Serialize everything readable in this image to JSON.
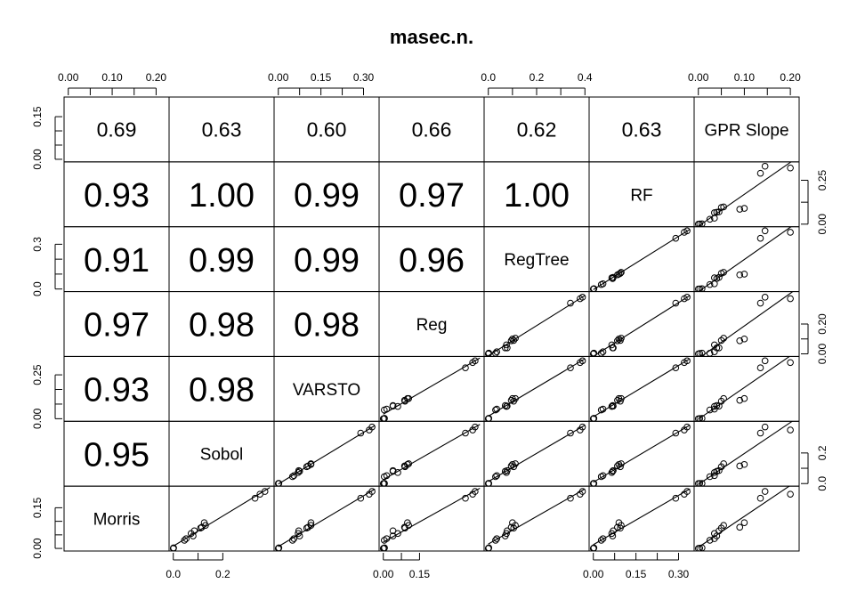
{
  "chart_data": {
    "type": "scatter",
    "plot_kind": "scatterplot-matrix",
    "title": "masec.n.",
    "variables": [
      "Morris",
      "Sobol",
      "VARSTO",
      "Reg",
      "RegTree",
      "RF",
      "GPR Slope"
    ],
    "correlations": [
      {
        "row": "GPR Slope",
        "col": "Morris",
        "value": "0.69"
      },
      {
        "row": "GPR Slope",
        "col": "Sobol",
        "value": "0.63"
      },
      {
        "row": "GPR Slope",
        "col": "VARSTO",
        "value": "0.60"
      },
      {
        "row": "GPR Slope",
        "col": "Reg",
        "value": "0.66"
      },
      {
        "row": "GPR Slope",
        "col": "RegTree",
        "value": "0.62"
      },
      {
        "row": "GPR Slope",
        "col": "RF",
        "value": "0.63"
      },
      {
        "row": "RF",
        "col": "Morris",
        "value": "0.93"
      },
      {
        "row": "RF",
        "col": "Sobol",
        "value": "1.00"
      },
      {
        "row": "RF",
        "col": "VARSTO",
        "value": "0.99"
      },
      {
        "row": "RF",
        "col": "Reg",
        "value": "0.97"
      },
      {
        "row": "RF",
        "col": "RegTree",
        "value": "1.00"
      },
      {
        "row": "RegTree",
        "col": "Morris",
        "value": "0.91"
      },
      {
        "row": "RegTree",
        "col": "Sobol",
        "value": "0.99"
      },
      {
        "row": "RegTree",
        "col": "VARSTO",
        "value": "0.99"
      },
      {
        "row": "RegTree",
        "col": "Reg",
        "value": "0.96"
      },
      {
        "row": "Reg",
        "col": "Morris",
        "value": "0.97"
      },
      {
        "row": "Reg",
        "col": "Sobol",
        "value": "0.98"
      },
      {
        "row": "Reg",
        "col": "VARSTO",
        "value": "0.98"
      },
      {
        "row": "VARSTO",
        "col": "Morris",
        "value": "0.93"
      },
      {
        "row": "VARSTO",
        "col": "Sobol",
        "value": "0.98"
      },
      {
        "row": "Sobol",
        "col": "Morris",
        "value": "0.95"
      }
    ],
    "axis_ticks": {
      "top": [
        {
          "col": 0,
          "labels": [
            "0.00",
            "0.10",
            "0.20"
          ]
        },
        {
          "col": 2,
          "labels": [
            "0.00",
            "0.15",
            "0.30"
          ]
        },
        {
          "col": 4,
          "labels": [
            "0.0",
            "0.2",
            "0.4"
          ]
        },
        {
          "col": 6,
          "labels": [
            "0.00",
            "0.10",
            "0.20"
          ]
        }
      ],
      "bottom": [
        {
          "col": 1,
          "labels": [
            "0.0",
            "0.2"
          ]
        },
        {
          "col": 3,
          "labels": [
            "0.00",
            "0.15"
          ]
        },
        {
          "col": 5,
          "labels": [
            "0.00",
            "0.15",
            "0.30"
          ]
        }
      ],
      "left": [
        {
          "row": 0,
          "labels": [
            "0.00",
            "0.15"
          ]
        },
        {
          "row": 2,
          "labels": [
            "0.0",
            "0.3"
          ]
        },
        {
          "row": 4,
          "labels": [
            "0.00",
            "0.25"
          ]
        },
        {
          "row": 6,
          "labels": [
            "0.00",
            "0.15"
          ]
        }
      ],
      "right": [
        {
          "row": 1,
          "labels": [
            "0.00",
            "0.25"
          ]
        },
        {
          "row": 3,
          "labels": [
            "0.00",
            "0.20"
          ]
        },
        {
          "row": 5,
          "labels": [
            "0.0",
            "0.2"
          ]
        }
      ]
    },
    "axis_ranges": {
      "Morris": [
        0,
        0.22
      ],
      "Sobol": [
        0,
        0.39
      ],
      "VARSTO": [
        0,
        0.34
      ],
      "Reg": [
        0,
        0.4
      ],
      "RegTree": [
        0,
        0.4
      ],
      "RF": [
        0,
        0.34
      ],
      "GPR Slope": [
        0,
        0.21
      ]
    },
    "observations": [
      {
        "Morris": 0.0,
        "Sobol": 0.0,
        "VARSTO": 0.0,
        "Reg": 0.0,
        "RegTree": 0.0,
        "RF": 0.0,
        "GPR Slope": 0.0
      },
      {
        "Morris": 0.001,
        "Sobol": 0.001,
        "VARSTO": 0.001,
        "Reg": 0.003,
        "RegTree": 0.001,
        "RF": 0.001,
        "GPR Slope": 0.003
      },
      {
        "Morris": 0.002,
        "Sobol": 0.001,
        "VARSTO": 0.002,
        "Reg": 0.005,
        "RegTree": 0.002,
        "RF": 0.002,
        "GPR Slope": 0.008
      },
      {
        "Morris": 0.03,
        "Sobol": 0.045,
        "VARSTO": 0.05,
        "Reg": 0.004,
        "RegTree": 0.03,
        "RF": 0.028,
        "GPR Slope": 0.025
      },
      {
        "Morris": 0.036,
        "Sobol": 0.052,
        "VARSTO": 0.055,
        "Reg": 0.014,
        "RegTree": 0.035,
        "RF": 0.034,
        "GPR Slope": 0.035
      },
      {
        "Morris": 0.046,
        "Sobol": 0.08,
        "VARSTO": 0.075,
        "Reg": 0.04,
        "RegTree": 0.07,
        "RF": 0.068,
        "GPR Slope": 0.04
      },
      {
        "Morris": 0.055,
        "Sobol": 0.072,
        "VARSTO": 0.07,
        "Reg": 0.06,
        "RegTree": 0.075,
        "RF": 0.065,
        "GPR Slope": 0.035
      },
      {
        "Morris": 0.065,
        "Sobol": 0.085,
        "VARSTO": 0.072,
        "Reg": 0.04,
        "RegTree": 0.078,
        "RF": 0.07,
        "GPR Slope": 0.045
      },
      {
        "Morris": 0.075,
        "Sobol": 0.11,
        "VARSTO": 0.1,
        "Reg": 0.09,
        "RegTree": 0.105,
        "RF": 0.095,
        "GPR Slope": 0.05
      },
      {
        "Morris": 0.085,
        "Sobol": 0.13,
        "VARSTO": 0.115,
        "Reg": 0.105,
        "RegTree": 0.112,
        "RF": 0.098,
        "GPR Slope": 0.055
      },
      {
        "Morris": 0.078,
        "Sobol": 0.115,
        "VARSTO": 0.105,
        "Reg": 0.088,
        "RegTree": 0.095,
        "RF": 0.085,
        "GPR Slope": 0.09
      },
      {
        "Morris": 0.095,
        "Sobol": 0.125,
        "VARSTO": 0.115,
        "Reg": 0.1,
        "RegTree": 0.1,
        "RF": 0.09,
        "GPR Slope": 0.1
      },
      {
        "Morris": 0.185,
        "Sobol": 0.33,
        "VARSTO": 0.29,
        "Reg": 0.34,
        "RegTree": 0.34,
        "RF": 0.29,
        "GPR Slope": 0.135
      },
      {
        "Morris": 0.21,
        "Sobol": 0.37,
        "VARSTO": 0.33,
        "Reg": 0.38,
        "RegTree": 0.39,
        "RF": 0.33,
        "GPR Slope": 0.145
      },
      {
        "Morris": 0.2,
        "Sobol": 0.35,
        "VARSTO": 0.32,
        "Reg": 0.37,
        "RegTree": 0.38,
        "RF": 0.32,
        "GPR Slope": 0.2
      }
    ]
  }
}
